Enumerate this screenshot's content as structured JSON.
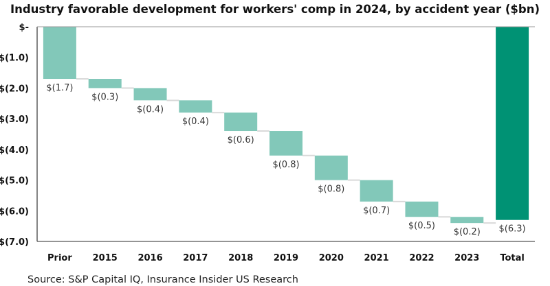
{
  "chart_data": {
    "type": "waterfall",
    "title": "Industry favorable development for workers' comp in 2024, by accident year ($bn)",
    "xlabel": "",
    "ylabel": "",
    "ylim": [
      -7,
      0
    ],
    "yticks": [
      0,
      -1,
      -2,
      -3,
      -4,
      -5,
      -6,
      -7
    ],
    "ytick_labels": [
      "$-",
      "$(1.0)",
      "$(2.0)",
      "$(3.0)",
      "$(4.0)",
      "$(5.0)",
      "$(6.0)",
      "$(7.0)"
    ],
    "categories": [
      "Prior",
      "2015",
      "2016",
      "2017",
      "2018",
      "2019",
      "2020",
      "2021",
      "2022",
      "2023",
      "Total"
    ],
    "values": [
      -1.7,
      -0.3,
      -0.4,
      -0.4,
      -0.6,
      -0.8,
      -0.8,
      -0.7,
      -0.5,
      -0.2,
      -6.3
    ],
    "data_labels": [
      "$(1.7)",
      "$(0.3)",
      "$(0.4)",
      "$(0.4)",
      "$(0.6)",
      "$(0.8)",
      "$(0.8)",
      "$(0.7)",
      "$(0.5)",
      "$(0.2)",
      "$(6.3)"
    ],
    "grid": false,
    "legend": "none",
    "colors": {
      "step": "#82c8b9",
      "total": "#009274",
      "connector": "#d9d9d9"
    }
  },
  "source": "Source: S&P Capital IQ, Insurance Insider US Research"
}
